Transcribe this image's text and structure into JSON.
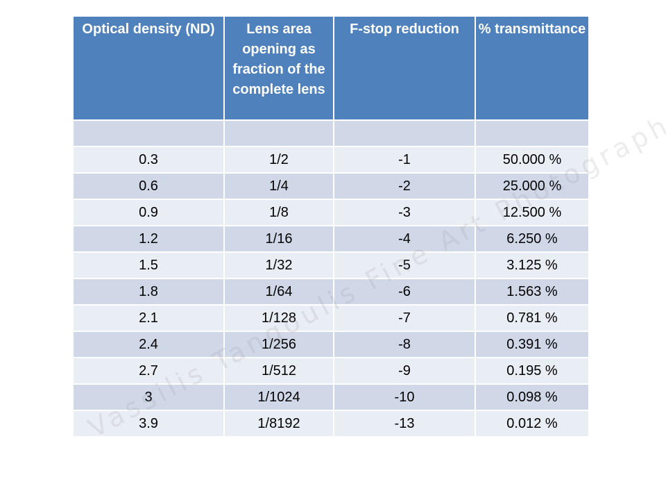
{
  "table": {
    "headers": [
      "Optical density (ND)",
      "Lens area opening as fraction of the  complete lens",
      "F-stop reduction",
      "% transmittance"
    ],
    "rows": [
      [
        "0.3",
        "1/2",
        "-1",
        "50.000 %"
      ],
      [
        "0.6",
        "1/4",
        "-2",
        "25.000 %"
      ],
      [
        "0.9",
        "1/8",
        "-3",
        "12.500 %"
      ],
      [
        "1.2",
        "1/16",
        "-4",
        "6.250 %"
      ],
      [
        "1.5",
        "1/32",
        "-5",
        "3.125 %"
      ],
      [
        "1.8",
        "1/64",
        "-6",
        "1.563 %"
      ],
      [
        "2.1",
        "1/128",
        "-7",
        "0.781 %"
      ],
      [
        "2.4",
        "1/256",
        "-8",
        "0.391 %"
      ],
      [
        "2.7",
        "1/512",
        "-9",
        "0.195 %"
      ],
      [
        "3",
        "1/1024",
        "-10",
        "0.098 %"
      ],
      [
        "3.9",
        "1/8192",
        "-13",
        "0.012 %"
      ]
    ]
  },
  "watermark": {
    "text": "Vassilis Tangoulis Fine Art Photography"
  },
  "colors": {
    "header_bg": "#4f81bd",
    "header_text": "#ffffff",
    "row_light": "#e9edf4",
    "row_dark": "#d0d8e8"
  }
}
